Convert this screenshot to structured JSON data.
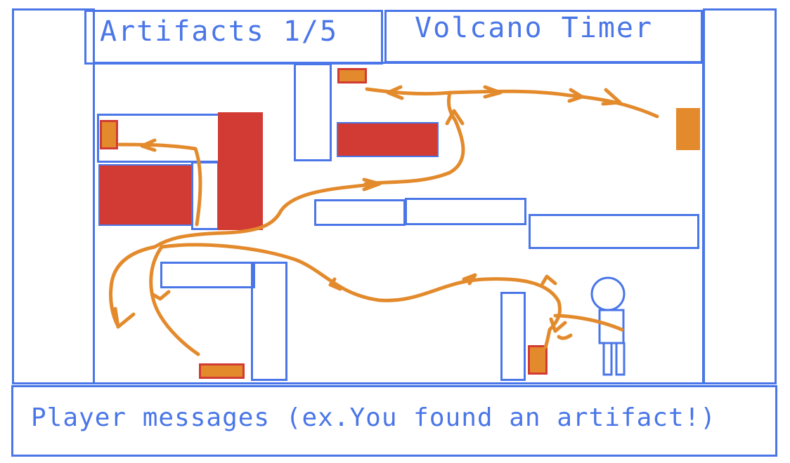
{
  "hud": {
    "artifacts_label": "Artifacts 1/5",
    "volcano_timer_label": "Volcano Timer"
  },
  "messages": {
    "text": "Player messages (ex.You found an artifact!)"
  },
  "colors": {
    "outline": "#4a76e8",
    "obstacle": "#d13b33",
    "artifact": "#e38a2c",
    "path": "#e38a2c"
  },
  "icons": {
    "player": "stick-figure-icon",
    "path": "path-arrow-icon"
  }
}
